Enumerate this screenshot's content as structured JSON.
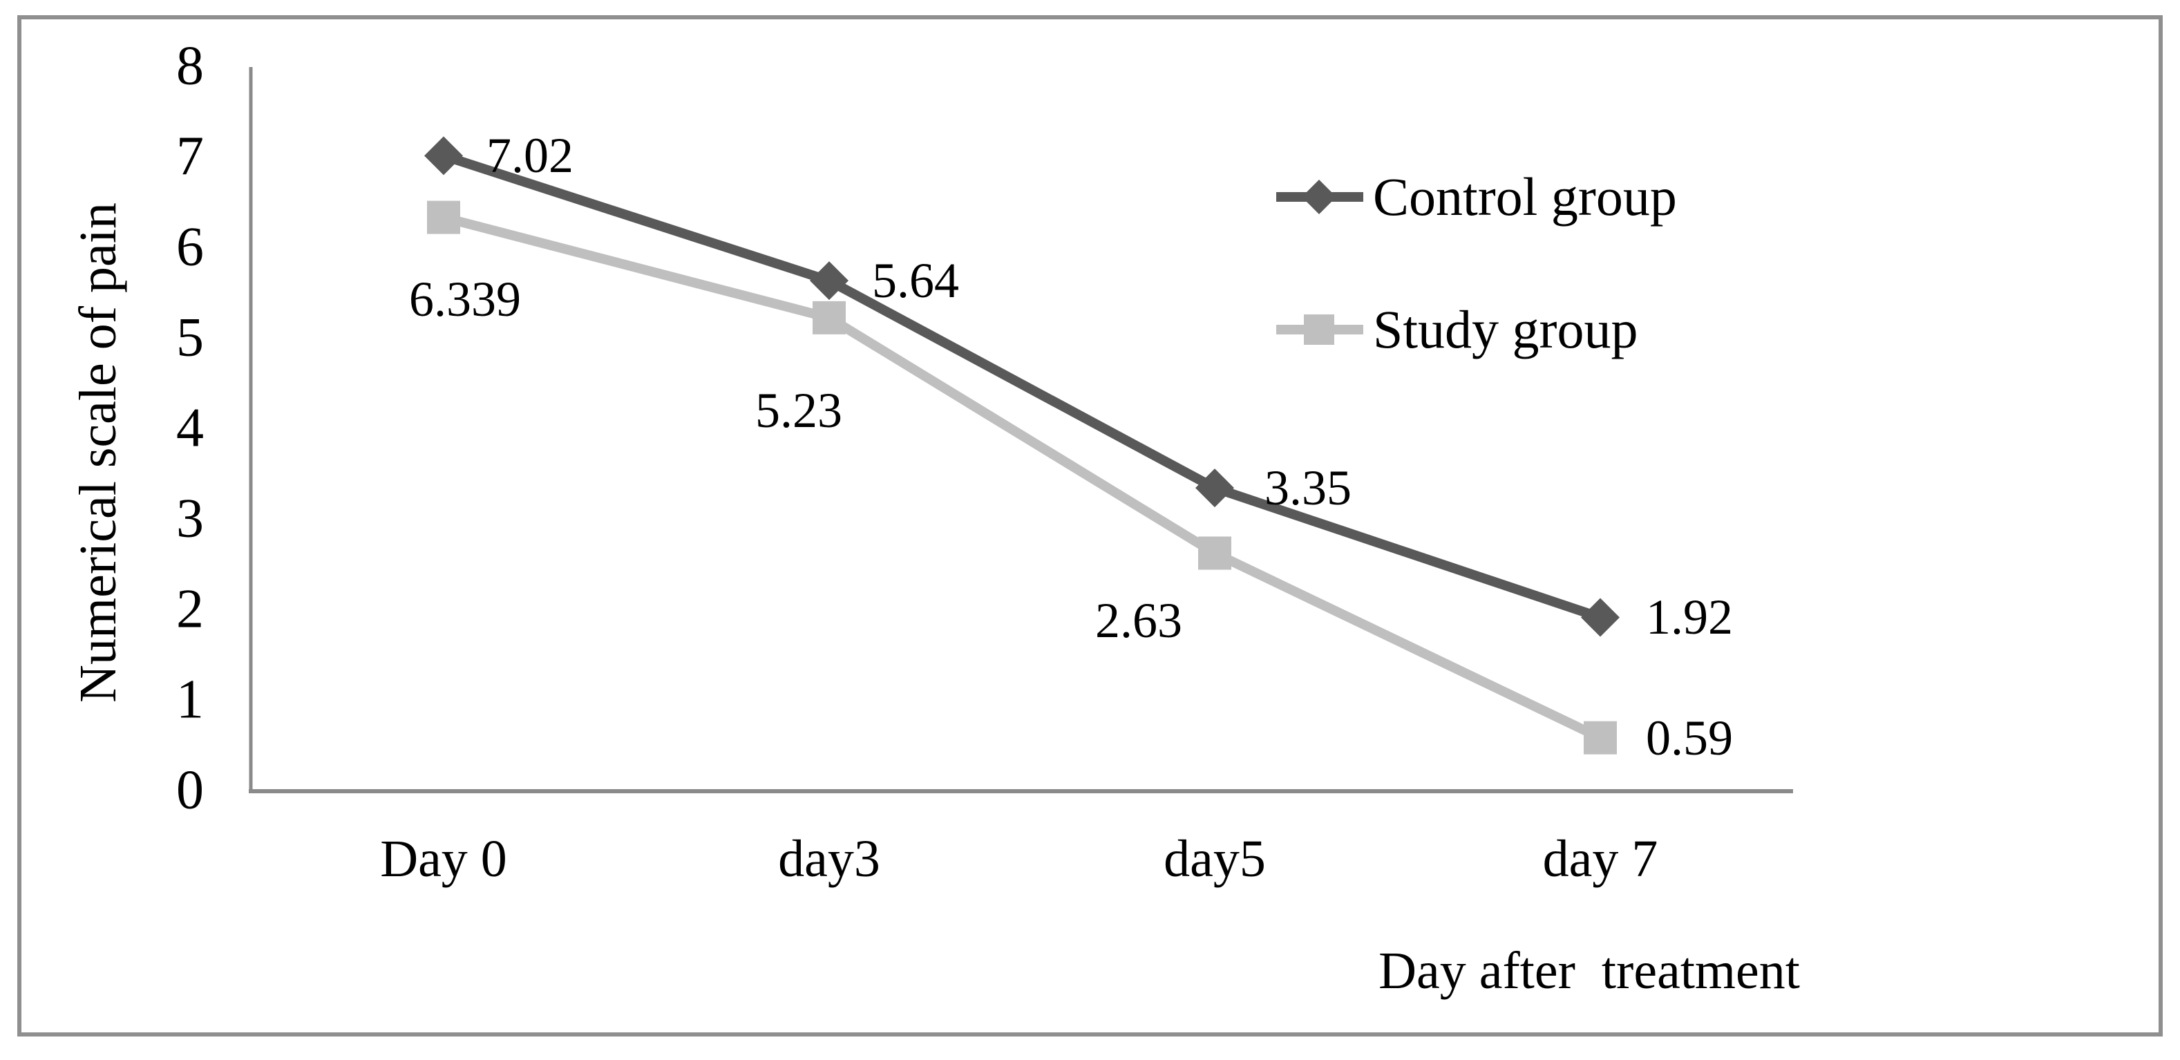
{
  "chart_data": {
    "type": "line",
    "title": "",
    "categories": [
      "Day 0",
      "day3",
      "day5",
      "day 7"
    ],
    "series": [
      {
        "name": "Control group",
        "values": [
          7.02,
          5.64,
          3.35,
          1.92
        ],
        "labels": [
          "7.02",
          "5.64",
          "3.35",
          "1.92"
        ],
        "color": "#595959",
        "marker": "diamond"
      },
      {
        "name": "Study group",
        "values": [
          6.339,
          5.23,
          2.63,
          0.59
        ],
        "labels": [
          "6.339",
          "5.23",
          "2.63",
          "0.59"
        ],
        "color": "#bfbfbf",
        "marker": "square"
      }
    ],
    "xlabel": "Day after  treatment",
    "ylabel": "Numerical scale of pain",
    "ylim": [
      0,
      8
    ],
    "y_ticks": [
      "8",
      "7",
      "6",
      "5",
      "4",
      "3",
      "2",
      "1",
      "0"
    ],
    "grid": false,
    "legend_position": "inside-upper-right",
    "axis_color": "#8a8a8a",
    "border_color": "#8f8f8f"
  }
}
